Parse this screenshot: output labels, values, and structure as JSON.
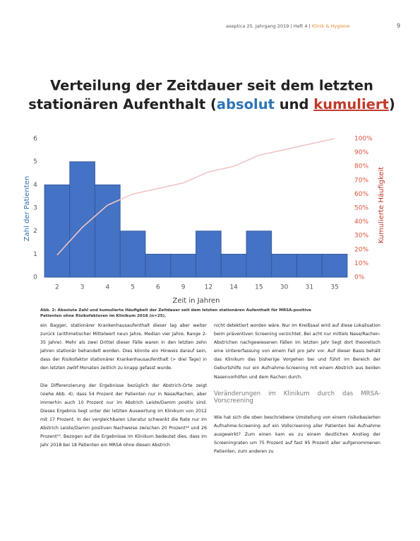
{
  "header": {
    "journal": "aseptica 25. Jahrgang 2019 | Heft 4 |",
    "section": "Klinik & Hygiene",
    "page": "9"
  },
  "chart_data": {
    "type": "bar",
    "title": [
      "Verteilung der Zeitdauer seit dem letzten",
      "stationären Aufenthalt (",
      "absolut",
      " und ",
      "kumuliert",
      ")"
    ],
    "categories": [
      "2",
      "3",
      "4",
      "5",
      "6",
      "9",
      "12",
      "14",
      "15",
      "30",
      "31",
      "35"
    ],
    "series": [
      {
        "type": "bar",
        "color": "#4472c4",
        "values": [
          4,
          5,
          4,
          2,
          1,
          1,
          2,
          1,
          2,
          1,
          1,
          1
        ]
      },
      {
        "type": "line",
        "axis": "y2",
        "color": "#f2c6c6",
        "values": [
          16,
          36,
          52,
          60,
          64,
          68,
          76,
          80,
          88,
          92,
          96,
          100
        ]
      }
    ],
    "xlabel": "Zeit in Jahren",
    "ylabel": "Zahl der Patienten",
    "y2label": "Kumulierte Häufigkeit",
    "ylim": [
      0,
      6
    ],
    "yticks": [
      0,
      1,
      2,
      3,
      4,
      5,
      6
    ],
    "y2lim": [
      0,
      100
    ],
    "y2ticks": [
      {
        "value": 0,
        "label": "0%"
      },
      {
        "value": 10,
        "label": "10%"
      },
      {
        "value": 20,
        "label": "20%"
      },
      {
        "value": 30,
        "label": "30%"
      },
      {
        "value": 40,
        "label": "40%"
      },
      {
        "value": 50,
        "label": "50%"
      },
      {
        "value": 60,
        "label": "60%"
      },
      {
        "value": 70,
        "label": "70%"
      },
      {
        "value": 80,
        "label": "80%"
      },
      {
        "value": 90,
        "label": "90%"
      },
      {
        "value": 100,
        "label": "100%"
      }
    ]
  },
  "caption": "Abb. 2: Absolute Zahl und kumulierte Häufigkeit der Zeitdauer seit dem letzten stationären Aufenthalt für MRSA-positive Patienten ohne Risikofaktoren im Klinikum 2018 (n=25).",
  "body": {
    "left": [
      "ein Bagger, stationärer Krankenhausaufenthalt dieser lag aber weiter zurück (arithmetischer Mittelwert neun Jahre, Median vier Jahre, Range 2-35 Jahre). Mehr als zwei Drittel dieser Fälle waren in den letzten zehn Jahren stationär behandelt worden. Dies könnte ein Hinweis darauf sein, dass der Risikofaktor stationärer Krankenhausaufenthalt (> drei Tage) in den letzten zwölf Monaten zeitlich zu knapp gefasst wurde.",
      "Die Differenzierung der Ergebnisse bezüglich der Abstrich-Orte zeigt (siehe Abb. 4), dass 54 Prozent der Patienten nur in Nase/Rachen, aber immerhin auch 10 Prozent nur im Abstrich Leiste/Damm positiv sind. Dieses Ergebnis liegt unter der letzten Auswertung im Klinikum von 2012 mit 17 Prozent. In der vergleichbaren Literatur schwankt die Rate nur im Abstrich Leiste/Damm positiven Nachweise zwischen 20 Prozent¹⁸ und 26 Prozent¹⁹. Bezogen auf die Ergebnisse im Klinikum bedeutet dies, dass im Jahr 2018 bei 18 Patienten ein MRSA ohne diesen Abstrich"
    ],
    "right": [
      "nicht detektiert worden wäre. Nur im Kreißsaal wird auf diese Lokalisation beim präventiven Screening verzichtet. Bei acht nur mittels Nase/Rachen-Abstrichen nachgewiesenen Fällen im letzten Jahr liegt dort theoretisch eine Untererfassung von einem Fall pro Jahr vor. Auf dieser Basis behält das Klinikum das bisherige Vorgehen bei und führt im Bereich der Geburtshilfe nur ein Aufnahme-Screening mit einem Abstrich aus beiden Nasenvorhöfen und dem Rachen durch."
    ],
    "heading": "Veränderungen im Klinikum durch das MRSA-Vorscreening",
    "right2": [
      "Wie hat sich die oben beschriebene Umstellung von einem risikobasierten Aufnahme-Screening auf ein Vollscreening aller Patienten bei Aufnahme ausgewirkt? Zum einen kam es zu einem deutlichen Anstieg der Screeningraten um 75 Prozent auf fast 95 Prozent aller aufgenommenen Patienten, zum anderen zu"
    ]
  }
}
